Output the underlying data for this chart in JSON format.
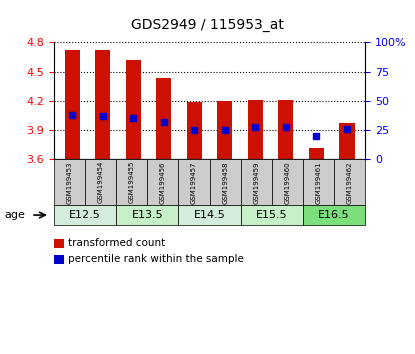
{
  "title": "GDS2949 / 115953_at",
  "samples": [
    "GSM199453",
    "GSM199454",
    "GSM199455",
    "GSM199456",
    "GSM199457",
    "GSM199458",
    "GSM199459",
    "GSM199460",
    "GSM199461",
    "GSM199462"
  ],
  "bar_tops": [
    4.72,
    4.72,
    4.62,
    4.43,
    4.19,
    4.2,
    4.21,
    4.21,
    3.72,
    3.97
  ],
  "bar_bottoms": [
    3.6,
    3.6,
    3.6,
    3.6,
    3.6,
    3.6,
    3.6,
    3.6,
    3.6,
    3.6
  ],
  "blue_dot_y": [
    4.05,
    4.04,
    4.02,
    3.98,
    3.9,
    3.9,
    3.93,
    3.93,
    3.84,
    3.91
  ],
  "ylim": [
    3.6,
    4.8
  ],
  "yticks_left": [
    3.6,
    3.9,
    4.2,
    4.5,
    4.8
  ],
  "yticks_right": [
    0,
    25,
    50,
    75,
    100
  ],
  "ytick_labels_right": [
    "0",
    "25",
    "50",
    "75",
    "100%"
  ],
  "age_groups": [
    {
      "label": "E12.5",
      "indices": [
        0,
        1
      ],
      "color": "#d4edda"
    },
    {
      "label": "E13.5",
      "indices": [
        2,
        3
      ],
      "color": "#c8f0c8"
    },
    {
      "label": "E14.5",
      "indices": [
        4,
        5
      ],
      "color": "#d4edda"
    },
    {
      "label": "E15.5",
      "indices": [
        6,
        7
      ],
      "color": "#c8f0c8"
    },
    {
      "label": "E16.5",
      "indices": [
        8,
        9
      ],
      "color": "#7be07b"
    }
  ],
  "bar_color": "#cc1100",
  "dot_color": "#0000cc",
  "bar_width": 0.5,
  "grid_color": "#000000",
  "sample_box_color": "#cccccc",
  "legend_items": [
    {
      "label": "transformed count",
      "color": "#cc1100"
    },
    {
      "label": "percentile rank within the sample",
      "color": "#0000cc"
    }
  ]
}
